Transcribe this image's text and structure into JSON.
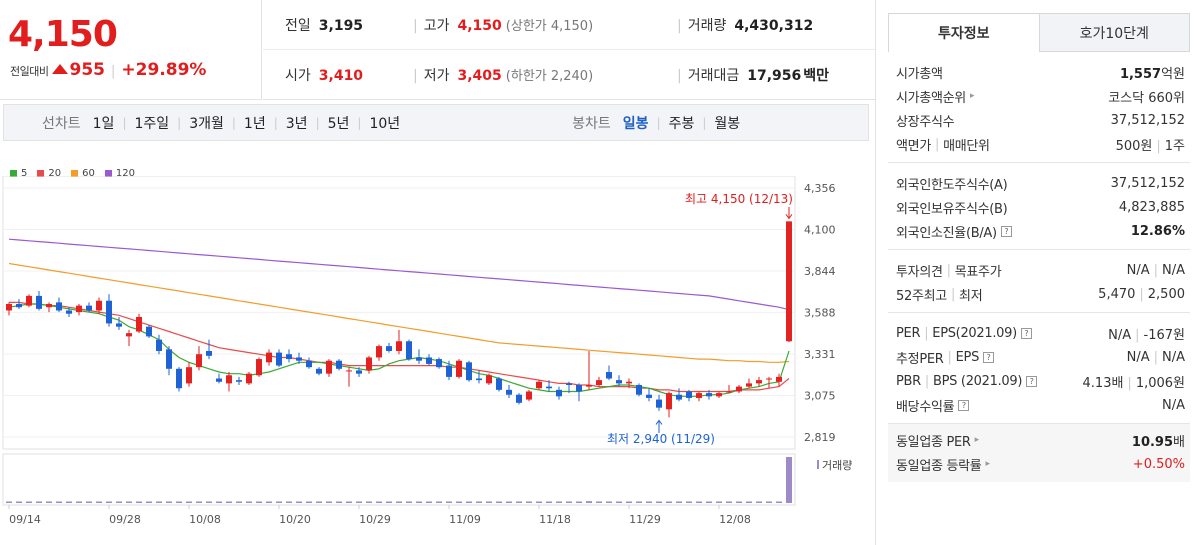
{
  "price": {
    "current": "4,150",
    "change_label": "전일대비",
    "change": "955",
    "change_pct": "+29.89%"
  },
  "info": {
    "prev_close": {
      "label": "전일",
      "value": "3,195"
    },
    "high": {
      "label": "고가",
      "value": "4,150",
      "note": "(상한가 4,150)"
    },
    "volume": {
      "label": "거래량",
      "value": "4,430,312"
    },
    "open": {
      "label": "시가",
      "value": "3,410"
    },
    "low": {
      "label": "저가",
      "value": "3,405",
      "note": "(하한가 2,240)"
    },
    "amount": {
      "label": "거래대금",
      "value": "17,956",
      "unit": "백만"
    }
  },
  "toolbar": {
    "line_label": "선차트",
    "periods": [
      "1일",
      "1주일",
      "3개월",
      "1년",
      "3년",
      "5년",
      "10년"
    ],
    "candle_label": "봉차트",
    "candle_periods": [
      "일봉",
      "주봉",
      "월봉"
    ],
    "candle_active": "일봉"
  },
  "legend": [
    {
      "name": "5",
      "color": "#3aaa35"
    },
    {
      "name": "20",
      "color": "#e94b4b"
    },
    {
      "name": "60",
      "color": "#f39c2a"
    },
    {
      "name": "120",
      "color": "#9b59d0"
    }
  ],
  "chart_data": {
    "type": "candlestick",
    "y_ticks": [
      "4,356",
      "4,100",
      "3,844",
      "3,588",
      "3,331",
      "3,075",
      "2,819"
    ],
    "ylim": [
      2819,
      4356
    ],
    "x_ticks": [
      "09/14",
      "09/28",
      "10/08",
      "10/20",
      "10/29",
      "11/09",
      "11/18",
      "11/29",
      "12/08"
    ],
    "annotations": {
      "high": "최고 4,150 (12/13)",
      "low": "최저 2,940 (11/29)"
    },
    "volume_label": "거래량",
    "candles": [
      [
        3600,
        3650,
        3570,
        3640
      ],
      [
        3640,
        3670,
        3610,
        3620
      ],
      [
        3630,
        3700,
        3620,
        3690
      ],
      [
        3690,
        3720,
        3600,
        3610
      ],
      [
        3620,
        3650,
        3590,
        3640
      ],
      [
        3650,
        3680,
        3590,
        3600
      ],
      [
        3600,
        3620,
        3560,
        3580
      ],
      [
        3590,
        3640,
        3570,
        3630
      ],
      [
        3630,
        3650,
        3590,
        3600
      ],
      [
        3600,
        3680,
        3580,
        3660
      ],
      [
        3660,
        3700,
        3500,
        3520
      ],
      [
        3520,
        3560,
        3480,
        3500
      ],
      [
        3440,
        3480,
        3380,
        3460
      ],
      [
        3470,
        3580,
        3460,
        3560
      ],
      [
        3500,
        3510,
        3430,
        3440
      ],
      [
        3420,
        3450,
        3330,
        3350
      ],
      [
        3360,
        3380,
        3200,
        3240
      ],
      [
        3240,
        3250,
        3100,
        3120
      ],
      [
        3150,
        3280,
        3130,
        3250
      ],
      [
        3250,
        3380,
        3230,
        3330
      ],
      [
        3350,
        3420,
        3300,
        3320
      ],
      [
        3180,
        3210,
        3150,
        3160
      ],
      [
        3150,
        3220,
        3100,
        3200
      ],
      [
        3170,
        3190,
        3140,
        3160
      ],
      [
        3150,
        3220,
        3140,
        3210
      ],
      [
        3200,
        3310,
        3190,
        3300
      ],
      [
        3280,
        3360,
        3260,
        3340
      ],
      [
        3340,
        3360,
        3250,
        3260
      ],
      [
        3330,
        3360,
        3280,
        3300
      ],
      [
        3310,
        3340,
        3270,
        3290
      ],
      [
        3290,
        3310,
        3240,
        3250
      ],
      [
        3240,
        3250,
        3200,
        3210
      ],
      [
        3210,
        3300,
        3190,
        3290
      ],
      [
        3290,
        3300,
        3230,
        3240
      ],
      [
        3230,
        3250,
        3130,
        3230
      ],
      [
        3230,
        3250,
        3190,
        3210
      ],
      [
        3230,
        3320,
        3210,
        3310
      ],
      [
        3310,
        3390,
        3290,
        3380
      ],
      [
        3380,
        3400,
        3340,
        3350
      ],
      [
        3350,
        3480,
        3330,
        3410
      ],
      [
        3410,
        3420,
        3290,
        3300
      ],
      [
        3310,
        3360,
        3270,
        3290
      ],
      [
        3310,
        3330,
        3260,
        3270
      ],
      [
        3300,
        3310,
        3240,
        3250
      ],
      [
        3260,
        3290,
        3170,
        3190
      ],
      [
        3190,
        3300,
        3180,
        3290
      ],
      [
        3280,
        3290,
        3160,
        3170
      ],
      [
        3180,
        3230,
        3150,
        3170
      ],
      [
        3150,
        3210,
        3140,
        3200
      ],
      [
        3180,
        3190,
        3100,
        3110
      ],
      [
        3110,
        3140,
        3060,
        3080
      ],
      [
        3080,
        3090,
        3020,
        3030
      ],
      [
        3050,
        3110,
        3040,
        3100
      ],
      [
        3120,
        3170,
        3110,
        3160
      ],
      [
        3130,
        3170,
        3100,
        3120
      ],
      [
        3110,
        3130,
        3050,
        3070
      ],
      [
        3150,
        3160,
        3090,
        3140
      ],
      [
        3140,
        3150,
        3040,
        3100
      ],
      [
        3130,
        3350,
        3110,
        3140
      ],
      [
        3140,
        3190,
        3130,
        3170
      ],
      [
        3220,
        3260,
        3170,
        3180
      ],
      [
        3170,
        3200,
        3130,
        3150
      ],
      [
        3150,
        3180,
        3120,
        3160
      ],
      [
        3140,
        3150,
        3070,
        3080
      ],
      [
        3080,
        3120,
        3040,
        3060
      ],
      [
        3050,
        3080,
        2980,
        3000
      ],
      [
        2990,
        3100,
        2940,
        3090
      ],
      [
        3080,
        3120,
        3040,
        3050
      ],
      [
        3100,
        3110,
        3040,
        3060
      ],
      [
        3060,
        3100,
        3040,
        3090
      ],
      [
        3090,
        3110,
        3050,
        3070
      ],
      [
        3070,
        3100,
        3060,
        3090
      ],
      [
        3100,
        3140,
        3090,
        3100
      ],
      [
        3100,
        3140,
        3090,
        3130
      ],
      [
        3130,
        3180,
        3120,
        3150
      ],
      [
        3150,
        3190,
        3130,
        3170
      ],
      [
        3180,
        3190,
        3120,
        3180
      ],
      [
        3160,
        3210,
        3130,
        3190
      ],
      [
        3410,
        4150,
        3405,
        4150
      ]
    ],
    "ma5": [
      3620,
      3630,
      3640,
      3640,
      3630,
      3620,
      3610,
      3600,
      3590,
      3580,
      3560,
      3540,
      3500,
      3480,
      3450,
      3420,
      3360,
      3310,
      3280,
      3260,
      3240,
      3220,
      3210,
      3210,
      3200,
      3210,
      3220,
      3240,
      3260,
      3280,
      3280,
      3280,
      3270,
      3260,
      3250,
      3240,
      3230,
      3240,
      3270,
      3290,
      3300,
      3310,
      3300,
      3290,
      3270,
      3250,
      3230,
      3210,
      3200,
      3180,
      3160,
      3140,
      3120,
      3110,
      3100,
      3100,
      3100,
      3100,
      3110,
      3120,
      3130,
      3140,
      3140,
      3130,
      3120,
      3100,
      3080,
      3070,
      3070,
      3070,
      3080,
      3080,
      3090,
      3110,
      3120,
      3130,
      3150,
      3160,
      3350
    ],
    "ma20": [
      3650,
      3650,
      3640,
      3640,
      3630,
      3630,
      3620,
      3610,
      3600,
      3590,
      3580,
      3570,
      3550,
      3530,
      3510,
      3490,
      3470,
      3450,
      3430,
      3410,
      3390,
      3370,
      3360,
      3350,
      3340,
      3330,
      3320,
      3310,
      3310,
      3300,
      3290,
      3280,
      3280,
      3270,
      3260,
      3260,
      3260,
      3260,
      3260,
      3260,
      3260,
      3260,
      3260,
      3260,
      3250,
      3250,
      3240,
      3230,
      3220,
      3210,
      3200,
      3190,
      3180,
      3170,
      3160,
      3150,
      3150,
      3140,
      3140,
      3130,
      3130,
      3130,
      3130,
      3120,
      3120,
      3110,
      3110,
      3100,
      3100,
      3100,
      3100,
      3100,
      3100,
      3110,
      3110,
      3110,
      3120,
      3130,
      3180
    ],
    "ma60": [
      3890,
      3880,
      3870,
      3860,
      3850,
      3840,
      3830,
      3820,
      3810,
      3800,
      3790,
      3780,
      3770,
      3760,
      3750,
      3740,
      3730,
      3720,
      3710,
      3700,
      3690,
      3680,
      3670,
      3660,
      3650,
      3640,
      3630,
      3620,
      3610,
      3600,
      3590,
      3580,
      3570,
      3560,
      3550,
      3540,
      3530,
      3520,
      3510,
      3500,
      3490,
      3480,
      3470,
      3460,
      3450,
      3440,
      3430,
      3420,
      3410,
      3400,
      3395,
      3390,
      3385,
      3380,
      3375,
      3370,
      3365,
      3360,
      3355,
      3350,
      3345,
      3340,
      3335,
      3330,
      3325,
      3320,
      3315,
      3310,
      3305,
      3300,
      3300,
      3295,
      3290,
      3290,
      3285,
      3285,
      3280,
      3280,
      3285
    ],
    "ma120": [
      4040,
      4035,
      4030,
      4025,
      4020,
      4015,
      4010,
      4005,
      4000,
      3995,
      3990,
      3985,
      3980,
      3975,
      3970,
      3965,
      3960,
      3955,
      3950,
      3945,
      3940,
      3935,
      3930,
      3925,
      3920,
      3915,
      3910,
      3905,
      3900,
      3895,
      3890,
      3885,
      3880,
      3875,
      3870,
      3865,
      3860,
      3855,
      3850,
      3845,
      3840,
      3835,
      3830,
      3825,
      3820,
      3815,
      3810,
      3805,
      3800,
      3795,
      3790,
      3785,
      3780,
      3775,
      3770,
      3765,
      3760,
      3755,
      3750,
      3745,
      3740,
      3735,
      3730,
      3725,
      3720,
      3715,
      3710,
      3705,
      3700,
      3695,
      3690,
      3680,
      3670,
      3660,
      3650,
      3640,
      3630,
      3620,
      3605
    ],
    "volume": [
      2,
      2,
      3,
      2,
      2,
      2,
      2,
      3,
      2,
      2,
      2,
      2,
      2,
      3,
      2,
      2,
      2,
      2,
      3,
      2,
      2,
      2,
      2,
      2,
      2,
      2,
      2,
      2,
      3,
      2,
      2,
      2,
      2,
      2,
      2,
      2,
      2,
      3,
      2,
      2,
      2,
      2,
      2,
      2,
      2,
      2,
      2,
      2,
      2,
      2,
      2,
      2,
      2,
      2,
      2,
      2,
      2,
      2,
      4,
      2,
      2,
      2,
      2,
      2,
      2,
      2,
      2,
      2,
      2,
      2,
      2,
      2,
      2,
      2,
      2,
      2,
      2,
      2,
      100
    ]
  },
  "panel": {
    "tabs": [
      "투자정보",
      "호가10단계"
    ],
    "block1": [
      {
        "k": "시가총액",
        "v": "1,557",
        "unit": "억원"
      },
      {
        "k": "시가총액순위",
        "v": "코스닥 660위",
        "arrow": true
      },
      {
        "k": "상장주식수",
        "v": "37,512,152"
      },
      {
        "k": "액면가",
        "k2": "매매단위",
        "v": "500원",
        "v2": "1주"
      }
    ],
    "block2": [
      {
        "k": "외국인한도주식수(A)",
        "v": "37,512,152"
      },
      {
        "k": "외국인보유주식수(B)",
        "v": "4,823,885"
      },
      {
        "k": "외국인소진율(B/A)",
        "v": "12.86%",
        "q": true
      }
    ],
    "block3": [
      {
        "k": "투자의견",
        "k2": "목표주가",
        "v": "N/A",
        "v2": "N/A"
      },
      {
        "k": "52주최고",
        "k2": "최저",
        "v": "5,470",
        "v2": "2,500"
      }
    ],
    "block4": [
      {
        "k": "PER",
        "k2": "EPS(2021.09)",
        "v": "N/A",
        "v2": "-167원"
      },
      {
        "k": "추정PER",
        "k2": "EPS",
        "v": "N/A",
        "v2": "N/A"
      },
      {
        "k": "PBR",
        "k2": "BPS (2021.09)",
        "v": "4.13배",
        "v2": "1,006원"
      },
      {
        "k": "배당수익률",
        "v": "N/A"
      }
    ],
    "block5": [
      {
        "k": "동일업종 PER",
        "v": "10.95",
        "unit": "배"
      },
      {
        "k": "동일업종 등락률",
        "v": "+0.50%"
      }
    ],
    "q_icon": "?"
  }
}
